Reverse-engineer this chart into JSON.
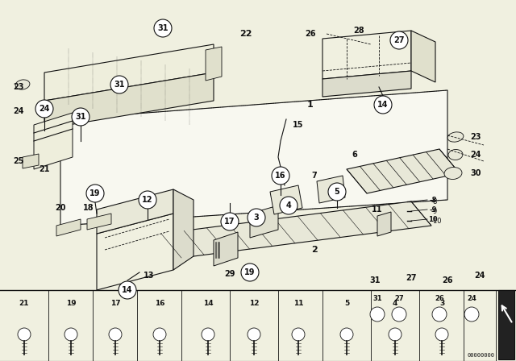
{
  "bg_color": "#f0f0e0",
  "line_color": "#111111",
  "fig_width": 6.4,
  "fig_height": 4.48,
  "dpi": 100,
  "part_number": "00000000",
  "main_bg": "#ffffff"
}
